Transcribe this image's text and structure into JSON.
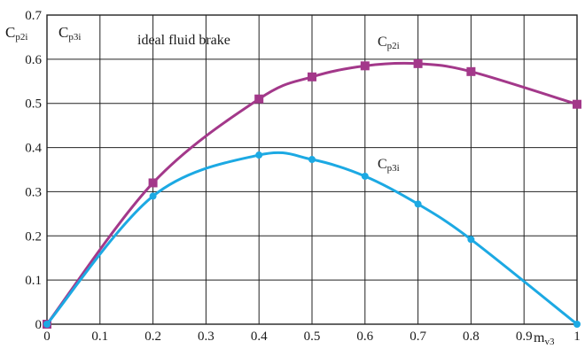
{
  "chart_data": {
    "type": "line",
    "title": "",
    "xlabel": "m",
    "xlabel_sub": "v3",
    "ylabel": "C",
    "ylabel_sub": "p2i",
    "ylabel2": "C",
    "ylabel2_sub": "p3i",
    "xlim": [
      0,
      1
    ],
    "ylim": [
      0,
      0.7
    ],
    "grid": true,
    "x_ticks": [
      "0",
      "0.1",
      "0.2",
      "0.3",
      "0.4",
      "0.5",
      "0.6",
      "0.7",
      "0.8",
      "0.9",
      "1"
    ],
    "y_ticks": [
      "0",
      "0.1",
      "0.2",
      "0.3",
      "0.4",
      "0.5",
      "0.6",
      "0.7"
    ],
    "annotation": "ideal fluid brake",
    "series": [
      {
        "name": "C",
        "name_sub": "p2i",
        "color": "#a3388a",
        "marker": "square",
        "x": [
          0,
          0.2,
          0.4,
          0.5,
          0.6,
          0.7,
          0.8,
          1.0
        ],
        "values": [
          0,
          0.32,
          0.51,
          0.56,
          0.585,
          0.59,
          0.572,
          0.498
        ]
      },
      {
        "name": "C",
        "name_sub": "p3i",
        "color": "#1ca9e3",
        "marker": "circle",
        "x": [
          0,
          0.2,
          0.4,
          0.5,
          0.6,
          0.7,
          0.8,
          1.0
        ],
        "values": [
          0,
          0.29,
          0.383,
          0.373,
          0.335,
          0.272,
          0.192,
          0
        ]
      }
    ]
  }
}
